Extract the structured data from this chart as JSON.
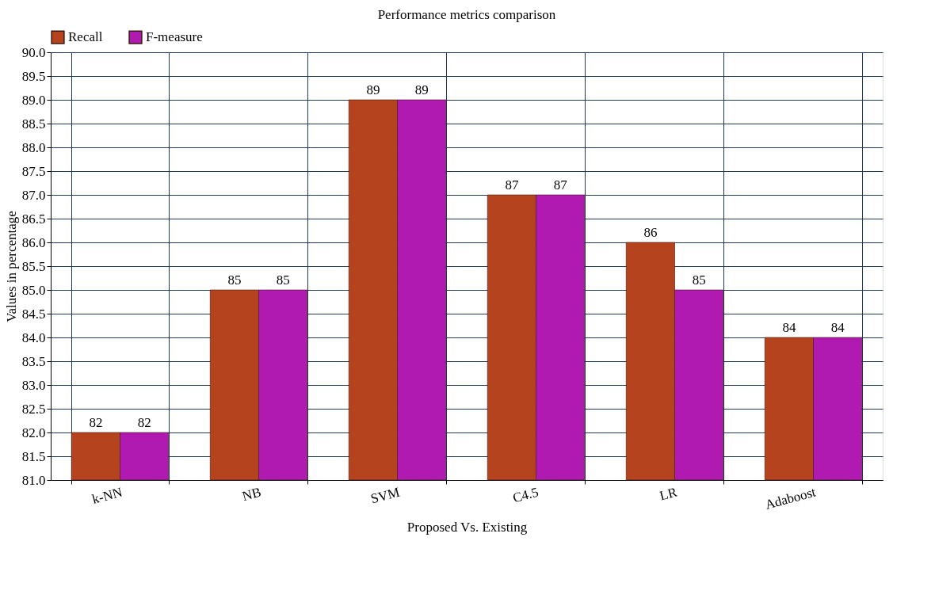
{
  "chart_data": {
    "type": "bar",
    "title": "Performance metrics comparison",
    "xlabel": "Proposed Vs. Existing",
    "ylabel": "Values in percentage",
    "categories": [
      "k-NN",
      "NB",
      "SVM",
      "C4.5",
      "LR",
      "Adaboost"
    ],
    "series": [
      {
        "name": "Recall",
        "color": "#b5441e",
        "values": [
          82,
          85,
          89,
          87,
          86,
          84
        ]
      },
      {
        "name": "F-measure",
        "color": "#b01ab0",
        "values": [
          82,
          85,
          89,
          87,
          85,
          84
        ]
      }
    ],
    "ylim": [
      81,
      90
    ],
    "yticks": [
      {
        "value": 81,
        "label": "81.0"
      },
      {
        "value": 81.5,
        "label": "81.5"
      },
      {
        "value": 82,
        "label": "82.0"
      },
      {
        "value": 82.5,
        "label": "82.5"
      },
      {
        "value": 83,
        "label": "83.0"
      },
      {
        "value": 83.5,
        "label": "83.5"
      },
      {
        "value": 84,
        "label": "84.0"
      },
      {
        "value": 84.5,
        "label": "84.5"
      },
      {
        "value": 85,
        "label": "85.0"
      },
      {
        "value": 85.5,
        "label": "85.5"
      },
      {
        "value": 86,
        "label": "86.0"
      },
      {
        "value": 86.5,
        "label": "86.5"
      },
      {
        "value": 87,
        "label": "87.0"
      },
      {
        "value": 87.5,
        "label": "87.5"
      },
      {
        "value": 88,
        "label": "88.0"
      },
      {
        "value": 88.5,
        "label": "88.5"
      },
      {
        "value": 89,
        "label": "89.0"
      },
      {
        "value": 89.5,
        "label": "89.5"
      },
      {
        "value": 90,
        "label": "90.0"
      }
    ],
    "grid": true,
    "legend": "top left",
    "data_labels": true
  }
}
